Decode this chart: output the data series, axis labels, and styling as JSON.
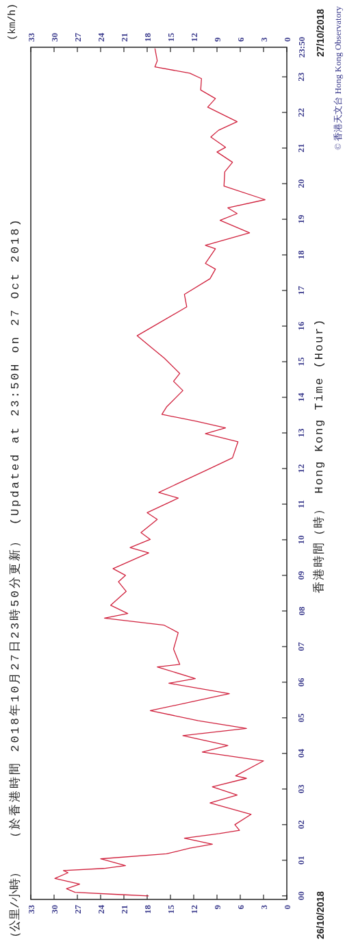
{
  "chart_data": {
    "type": "line",
    "title": "（於香港時間 2018年10月27日23時50分更新） (Updated at 23:50H on 27 Oct 2018)",
    "x2label": "(km/h)",
    "ylabel": "香港時間（時） Hong Kong Time (Hour)",
    "annotations": [
      "（公里/小時）",
      "26/10/2018",
      "27/10/2018",
      "© 香港天文台 Hong Kong Observatory"
    ],
    "xlim": [
      33,
      0
    ],
    "x2lim": [
      33,
      0
    ],
    "ylim": [
      -0.1,
      23.83
    ],
    "yticks": [
      {
        "value": 0,
        "label": "00"
      },
      {
        "value": 1,
        "label": "01"
      },
      {
        "value": 2,
        "label": "02"
      },
      {
        "value": 3,
        "label": "03"
      },
      {
        "value": 4,
        "label": "04"
      },
      {
        "value": 5,
        "label": "05"
      },
      {
        "value": 6,
        "label": "06"
      },
      {
        "value": 7,
        "label": "07"
      },
      {
        "value": 8,
        "label": "08"
      },
      {
        "value": 9,
        "label": "09"
      },
      {
        "value": 10,
        "label": "10"
      },
      {
        "value": 11,
        "label": "11"
      },
      {
        "value": 12,
        "label": "12"
      },
      {
        "value": 13,
        "label": "13"
      },
      {
        "value": 14,
        "label": "14"
      },
      {
        "value": 15,
        "label": "15"
      },
      {
        "value": 16,
        "label": "16"
      },
      {
        "value": 17,
        "label": "17"
      },
      {
        "value": 18,
        "label": "18"
      },
      {
        "value": 19,
        "label": "19"
      },
      {
        "value": 20,
        "label": "20"
      },
      {
        "value": 21,
        "label": "21"
      },
      {
        "value": 22,
        "label": "22"
      },
      {
        "value": 23,
        "label": "23"
      },
      {
        "value": 23.83,
        "label": "23:50"
      }
    ],
    "xticks": [
      33,
      30,
      27,
      24,
      21,
      18,
      15,
      12,
      9,
      6,
      3,
      0
    ],
    "x2ticks": [
      33,
      30,
      27,
      24,
      21,
      18,
      15,
      12,
      9,
      6,
      3,
      0
    ],
    "series": [
      {
        "color": "#d0203c",
        "x": [
          17.8,
          20.9,
          27.3,
          28.4,
          26.7,
          29.9,
          28.2,
          28.8,
          23.6,
          20.8,
          24.0,
          15.5,
          12.5,
          9.6,
          13.2,
          8.7,
          6.1,
          6.7,
          4.6,
          9.9,
          6.4,
          9.6,
          5.2,
          6.6,
          3.0,
          10.9,
          7.6,
          13.4,
          5.2,
          11.4,
          17.6,
          7.4,
          15.2,
          11.8,
          16.7,
          13.8,
          14.6,
          14.0,
          15.8,
          23.5,
          20.5,
          22.7,
          20.7,
          21.7,
          20.8,
          22.4,
          17.8,
          20.2,
          17.6,
          18.8,
          16.7,
          18.0,
          14.0,
          16.5,
          10.5,
          7.0,
          6.3,
          10.5,
          7.9,
          11.7,
          16.1,
          15.5,
          13.4,
          14.6,
          13.8,
          15.8,
          19.3,
          17.4,
          12.9,
          13.2,
          9.9,
          9.2,
          10.5,
          9.2,
          10.5,
          4.8,
          8.6,
          6.4,
          7.6,
          2.8,
          8.1,
          8.0,
          7.0,
          9.0,
          7.9,
          9.8,
          8.8,
          6.4,
          10.2,
          9.2,
          11.1,
          11.0,
          12.5,
          17.0,
          16.7,
          17.0
        ],
        "values": [
          0,
          0.03,
          0.1,
          0.2,
          0.33,
          0.49,
          0.65,
          0.71,
          0.77,
          0.85,
          1.04,
          1.18,
          1.34,
          1.45,
          1.62,
          1.75,
          1.84,
          2.0,
          2.29,
          2.61,
          2.83,
          3.06,
          3.3,
          3.37,
          3.79,
          4.04,
          4.22,
          4.5,
          4.7,
          4.92,
          5.2,
          5.68,
          5.97,
          6.1,
          6.43,
          6.5,
          6.93,
          7.39,
          7.6,
          7.8,
          7.93,
          8.16,
          8.55,
          8.82,
          9.0,
          9.19,
          9.63,
          9.78,
          10.01,
          10.2,
          10.57,
          10.76,
          11.17,
          11.33,
          11.94,
          12.3,
          12.75,
          12.98,
          13.14,
          13.33,
          13.52,
          13.73,
          14.19,
          14.45,
          14.67,
          15.1,
          15.73,
          15.97,
          16.54,
          16.89,
          17.33,
          17.6,
          17.76,
          18.17,
          18.27,
          18.62,
          18.97,
          19.16,
          19.32,
          19.55,
          19.93,
          20.33,
          20.6,
          20.89,
          21.02,
          21.31,
          21.5,
          21.74,
          22.15,
          22.39,
          22.63,
          22.95,
          23.1,
          23.28,
          23.45,
          23.8
        ]
      }
    ]
  }
}
